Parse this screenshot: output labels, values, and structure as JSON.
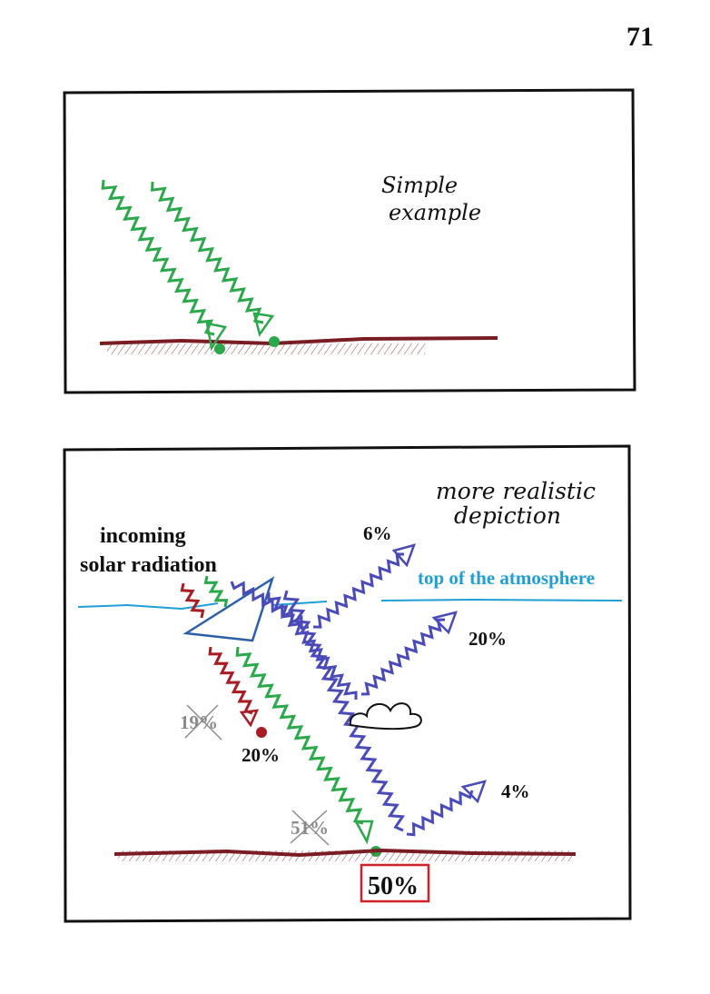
{
  "page_number": "71",
  "top_panel": {
    "caption_line1": "Simple",
    "caption_line2": "example"
  },
  "bottom_panel": {
    "caption_line1": "more realistic",
    "caption_line2": "depiction",
    "incoming_line1": "incoming",
    "incoming_line2": "solar radiation",
    "atmosphere_label": "top of the atmosphere",
    "pct_reflected_atmosphere": "6%",
    "pct_reflected_clouds": "20%",
    "pct_reflected_surface": "4%",
    "pct_absorbed_atmosphere_old": "19%",
    "pct_absorbed_atmosphere": "20%",
    "pct_absorbed_surface_old": "51%",
    "pct_absorbed_surface": "50%"
  },
  "colors": {
    "ink": "#111111",
    "green": "#2aa84a",
    "blue": "#4a4ab8",
    "red": "#a81c24",
    "ground": "#7a1c24",
    "cyan": "#1f9fd6",
    "gray": "#8a8a8a",
    "box_red": "#d0202a"
  }
}
